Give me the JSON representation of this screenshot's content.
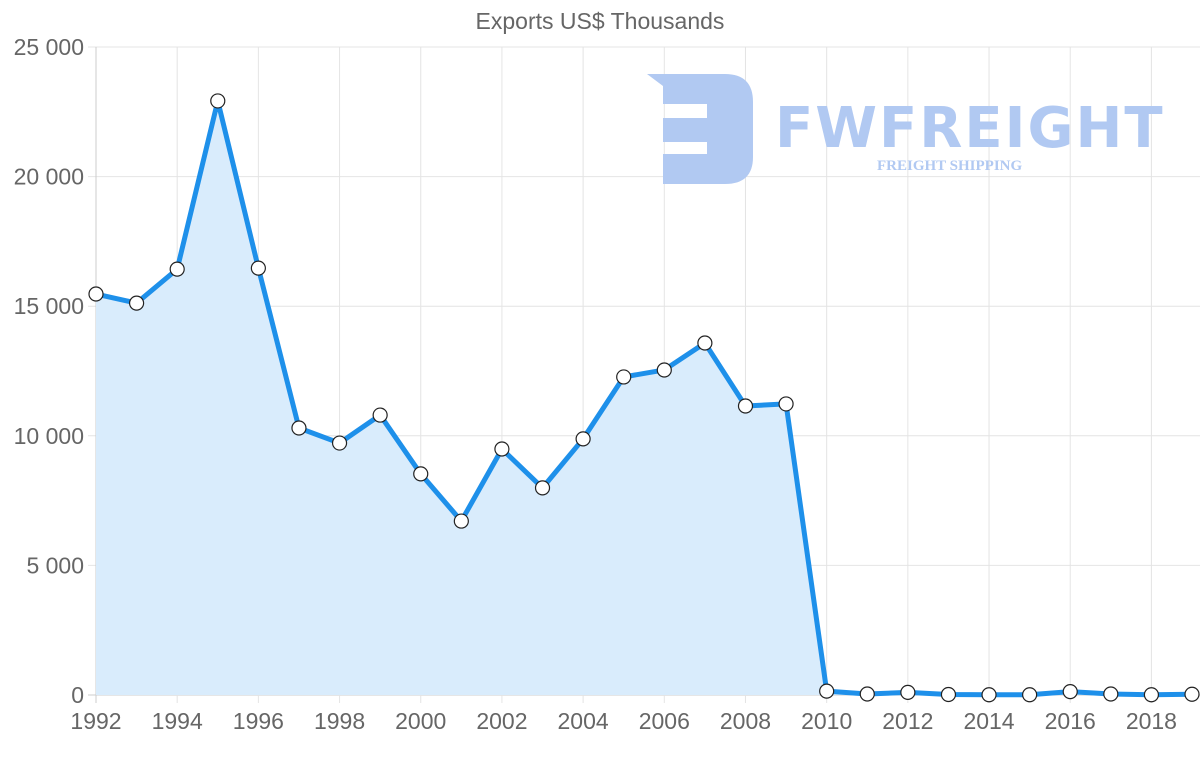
{
  "chart_data": {
    "type": "area",
    "title": "Exports US$ Thousands",
    "xlabel": "",
    "ylabel": "",
    "ylim": [
      0,
      25000
    ],
    "xlim": [
      1992,
      2019
    ],
    "grid": true,
    "legend": null,
    "y_ticks": [
      "0",
      "5 000",
      "10 000",
      "15 000",
      "20 000",
      "25 000"
    ],
    "x_ticks": [
      "1992",
      "1994",
      "1996",
      "1998",
      "2000",
      "2002",
      "2004",
      "2006",
      "2008",
      "2010",
      "2012",
      "2014",
      "2016",
      "2018"
    ],
    "x": [
      1992,
      1993,
      1994,
      1995,
      1996,
      1997,
      1998,
      1999,
      2000,
      2001,
      2002,
      2003,
      2004,
      2005,
      2006,
      2007,
      2008,
      2009,
      2010,
      2011,
      2012,
      2013,
      2014,
      2015,
      2016,
      2017,
      2018,
      2019
    ],
    "series": [
      {
        "name": "Exports",
        "color": "#1e90ea",
        "fill": "#d9ecfc",
        "values": [
          15470,
          15120,
          16430,
          22920,
          16470,
          10300,
          9720,
          10800,
          8530,
          6710,
          9490,
          7990,
          9880,
          12270,
          12540,
          13580,
          11150,
          11230,
          150,
          40,
          100,
          20,
          10,
          10,
          130,
          40,
          10,
          30
        ]
      }
    ]
  },
  "watermark": {
    "brand": "FWFREIGHT",
    "tagline": "FREIGHT SHIPPING"
  }
}
